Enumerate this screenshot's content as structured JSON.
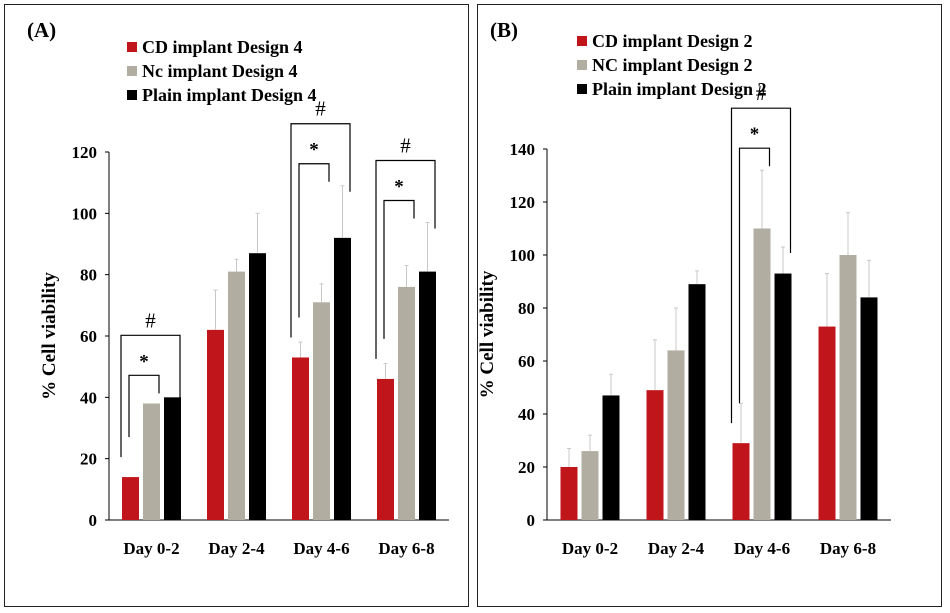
{
  "chart_data": [
    {
      "panel_label": "(A)",
      "type": "bar",
      "ylabel": "% Cell viability",
      "ylim": [
        0,
        120
      ],
      "yticks": [
        0,
        20,
        40,
        60,
        80,
        100,
        120
      ],
      "categories": [
        "Day 0-2",
        "Day 2-4",
        "Day 4-6",
        "Day 6-8"
      ],
      "legend_position": "top-left",
      "series": [
        {
          "name": "CD implant Design 4",
          "color": "#c0161b",
          "values": [
            14,
            62,
            53,
            46
          ],
          "errors": [
            0,
            13,
            5,
            5
          ]
        },
        {
          "name": "Nc implant Design 4",
          "color": "#b1ada0",
          "values": [
            38,
            81,
            71,
            76
          ],
          "errors": [
            0,
            4,
            6,
            7
          ]
        },
        {
          "name": "Plain implant Design 4",
          "color": "#000000",
          "values": [
            40,
            87,
            92,
            81
          ],
          "errors": [
            0,
            13,
            17,
            16
          ]
        }
      ],
      "annotations": [
        {
          "category": 0,
          "star": "*",
          "hash": "#"
        },
        {
          "category": 2,
          "star": "*",
          "hash": "#"
        },
        {
          "category": 3,
          "star": "*",
          "hash": "#"
        }
      ]
    },
    {
      "panel_label": "(B)",
      "type": "bar",
      "ylabel": "% Cell viability",
      "ylim": [
        0,
        140
      ],
      "yticks": [
        0,
        20,
        40,
        60,
        80,
        100,
        120,
        140
      ],
      "categories": [
        "Day 0-2",
        "Day 2-4",
        "Day 4-6",
        "Day 6-8"
      ],
      "legend_position": "top-left",
      "series": [
        {
          "name": "CD implant Design 2",
          "color": "#c0161b",
          "values": [
            20,
            49,
            29,
            73
          ],
          "errors": [
            7,
            19,
            15,
            20
          ]
        },
        {
          "name": "NC implant Design 2",
          "color": "#b1ada0",
          "values": [
            26,
            64,
            110,
            100
          ],
          "errors": [
            6,
            16,
            22,
            16
          ]
        },
        {
          "name": "Plain implant Design 2",
          "color": "#000000",
          "values": [
            47,
            89,
            93,
            84
          ],
          "errors": [
            8,
            5,
            10,
            14
          ]
        }
      ],
      "annotations": [
        {
          "category": 2,
          "star": "*",
          "hash": "#"
        }
      ]
    }
  ]
}
